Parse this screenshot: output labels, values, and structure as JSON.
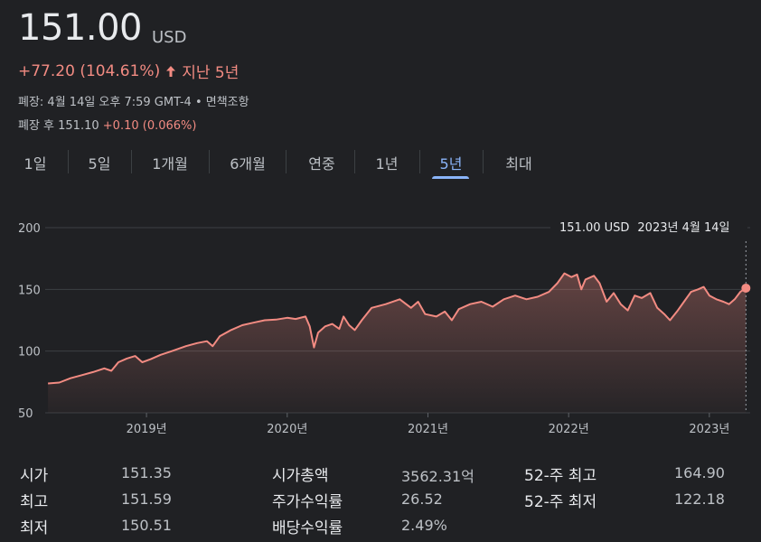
{
  "header": {
    "price": "151.00",
    "currency": "USD",
    "change": "+77.20 (104.61%)",
    "period": "지난 5년",
    "close_line_a": "폐장: 4월 14일 오후 7:59 GMT-4",
    "close_line_sep": " • ",
    "close_line_b": "면책조항",
    "after_label": "폐장 후 151.10",
    "after_change": "+0.10 (0.066%)"
  },
  "tabs": [
    "1일",
    "5일",
    "1개월",
    "6개월",
    "연중",
    "1년",
    "5년",
    "최대"
  ],
  "active_tab": "5년",
  "tooltip": {
    "price": "151.00 USD",
    "date": "2023년 4월 14일"
  },
  "colors": {
    "line": "#f28b82",
    "active": "#8ab4f8",
    "background": "#202124",
    "grid": "#3c4043"
  },
  "chart_data": {
    "type": "area",
    "title": "",
    "xlabel": "",
    "ylabel": "",
    "yticks": [
      "200",
      "150",
      "100",
      "50"
    ],
    "ylim": [
      50,
      200
    ],
    "xticks": [
      "2019년",
      "2020년",
      "2021년",
      "2022년",
      "2023년"
    ],
    "xtick_dates": [
      2019.0,
      2020.0,
      2021.0,
      2022.0,
      2023.0
    ],
    "xlim": [
      2018.28,
      2023.29
    ],
    "grid": true,
    "series": [
      {
        "points": [
          [
            2018.3,
            73.8
          ],
          [
            2018.38,
            74.5
          ],
          [
            2018.46,
            78.0
          ],
          [
            2018.54,
            80.5
          ],
          [
            2018.62,
            83.0
          ],
          [
            2018.7,
            86.0
          ],
          [
            2018.75,
            84.0
          ],
          [
            2018.8,
            91.0
          ],
          [
            2018.86,
            94.0
          ],
          [
            2018.92,
            96.0
          ],
          [
            2018.97,
            91.0
          ],
          [
            2019.03,
            93.5
          ],
          [
            2019.1,
            97.0
          ],
          [
            2019.18,
            100.0
          ],
          [
            2019.28,
            104.0
          ],
          [
            2019.36,
            106.5
          ],
          [
            2019.43,
            108.0
          ],
          [
            2019.47,
            104.0
          ],
          [
            2019.52,
            112.0
          ],
          [
            2019.6,
            117.0
          ],
          [
            2019.68,
            121.0
          ],
          [
            2019.76,
            123.0
          ],
          [
            2019.84,
            125.0
          ],
          [
            2019.92,
            125.5
          ],
          [
            2020.0,
            127.0
          ],
          [
            2020.06,
            126.0
          ],
          [
            2020.13,
            128.0
          ],
          [
            2020.16,
            120.0
          ],
          [
            2020.19,
            103.0
          ],
          [
            2020.22,
            115.0
          ],
          [
            2020.27,
            120.0
          ],
          [
            2020.32,
            122.0
          ],
          [
            2020.37,
            118.0
          ],
          [
            2020.4,
            128.0
          ],
          [
            2020.44,
            121.0
          ],
          [
            2020.48,
            117.0
          ],
          [
            2020.53,
            125.0
          ],
          [
            2020.6,
            135.0
          ],
          [
            2020.7,
            138.0
          ],
          [
            2020.8,
            142.0
          ],
          [
            2020.88,
            135.0
          ],
          [
            2020.93,
            140.0
          ],
          [
            2020.98,
            130.0
          ],
          [
            2021.06,
            128.0
          ],
          [
            2021.12,
            132.0
          ],
          [
            2021.17,
            125.0
          ],
          [
            2021.22,
            134.0
          ],
          [
            2021.3,
            138.0
          ],
          [
            2021.38,
            140.0
          ],
          [
            2021.46,
            136.0
          ],
          [
            2021.54,
            142.0
          ],
          [
            2021.62,
            145.0
          ],
          [
            2021.7,
            142.0
          ],
          [
            2021.78,
            144.0
          ],
          [
            2021.86,
            148.0
          ],
          [
            2021.92,
            155.0
          ],
          [
            2021.97,
            163.0
          ],
          [
            2022.02,
            160.0
          ],
          [
            2022.06,
            162.0
          ],
          [
            2022.09,
            150.0
          ],
          [
            2022.12,
            158.0
          ],
          [
            2022.18,
            161.0
          ],
          [
            2022.22,
            155.0
          ],
          [
            2022.27,
            140.0
          ],
          [
            2022.32,
            147.0
          ],
          [
            2022.37,
            138.0
          ],
          [
            2022.42,
            133.0
          ],
          [
            2022.47,
            145.0
          ],
          [
            2022.52,
            143.0
          ],
          [
            2022.58,
            147.0
          ],
          [
            2022.63,
            135.0
          ],
          [
            2022.68,
            130.0
          ],
          [
            2022.72,
            125.0
          ],
          [
            2022.77,
            132.0
          ],
          [
            2022.82,
            140.0
          ],
          [
            2022.87,
            148.0
          ],
          [
            2022.92,
            150.0
          ],
          [
            2022.96,
            152.0
          ],
          [
            2023.0,
            145.0
          ],
          [
            2023.05,
            142.0
          ],
          [
            2023.1,
            140.0
          ],
          [
            2023.14,
            138.0
          ],
          [
            2023.18,
            142.0
          ],
          [
            2023.22,
            148.0
          ],
          [
            2023.26,
            151.0
          ]
        ]
      }
    ]
  },
  "stats": {
    "col1": [
      {
        "label": "시가",
        "value": "151.35"
      },
      {
        "label": "최고",
        "value": "151.59"
      },
      {
        "label": "최저",
        "value": "150.51"
      }
    ],
    "col2": [
      {
        "label": "시가총액",
        "value": "3562.31억"
      },
      {
        "label": "주가수익률",
        "value": "26.52"
      },
      {
        "label": "배당수익률",
        "value": "2.49%"
      }
    ],
    "col3": [
      {
        "label": "52-주 최고",
        "value": "164.90"
      },
      {
        "label": "52-주 최저",
        "value": "122.18"
      }
    ]
  }
}
